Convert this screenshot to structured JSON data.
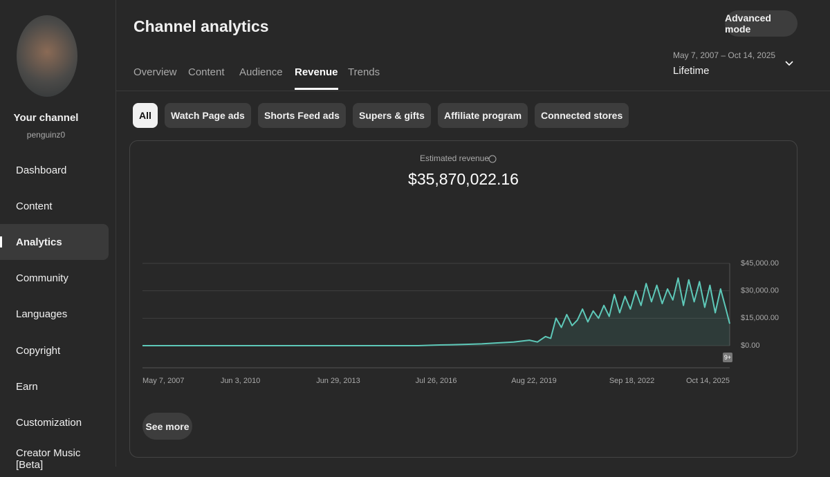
{
  "sidebar": {
    "channel_label": "Your channel",
    "handle": "penguinz0",
    "nav": [
      "Dashboard",
      "Content",
      "Analytics",
      "Community",
      "Languages",
      "Copyright",
      "Earn",
      "Customization",
      "Creator Music [Beta]"
    ],
    "selected_nav": "Analytics"
  },
  "header": {
    "title": "Channel analytics",
    "advanced_button": "Advanced mode",
    "tabs": [
      "Overview",
      "Content",
      "Audience",
      "Revenue",
      "Trends"
    ],
    "selected_tab": "Revenue",
    "date_range": "May 7, 2007 – Oct 14, 2025",
    "period": "Lifetime"
  },
  "chips": [
    "All",
    "Watch Page ads",
    "Shorts Feed ads",
    "Supers & gifts",
    "Affiliate program",
    "Connected stores"
  ],
  "selected_chip": "All",
  "see_more": "See more",
  "badge": "9+",
  "chart_data": {
    "type": "line",
    "title": "Estimated revenue",
    "subtitle": "$35,870,022.16",
    "x": [
      "2007-05-07",
      "2010-01-01",
      "2013-01-01",
      "2016-01-01",
      "2016-07-01",
      "2017-01-01",
      "2017-07-01",
      "2018-01-01",
      "2018-07-01",
      "2019-01-01",
      "2019-07-01",
      "2019-10-01",
      "2020-01-01",
      "2020-03-01",
      "2020-05-01",
      "2020-07-01",
      "2020-09-01",
      "2020-11-01",
      "2021-01-01",
      "2021-03-01",
      "2021-05-01",
      "2021-07-01",
      "2021-09-01",
      "2021-11-01",
      "2022-01-01",
      "2022-03-01",
      "2022-05-01",
      "2022-07-01",
      "2022-09-01",
      "2022-11-01",
      "2023-01-01",
      "2023-03-01",
      "2023-05-01",
      "2023-07-01",
      "2023-09-01",
      "2023-11-01",
      "2024-01-01",
      "2024-03-01",
      "2024-05-01",
      "2024-07-01",
      "2024-09-01",
      "2024-11-01",
      "2025-01-01",
      "2025-03-01",
      "2025-05-01",
      "2025-07-01",
      "2025-09-01",
      "2025-10-14"
    ],
    "series": [
      {
        "name": "Estimated revenue",
        "color": "#5ec9b9",
        "values": [
          0,
          0,
          0,
          0,
          300,
          500,
          700,
          1000,
          1500,
          2000,
          3000,
          2000,
          5000,
          4000,
          15000,
          10000,
          17000,
          11000,
          14000,
          20000,
          13000,
          19000,
          15000,
          22000,
          16000,
          28000,
          18000,
          27000,
          20000,
          30000,
          22000,
          34000,
          24000,
          33000,
          23000,
          31000,
          25000,
          37000,
          22000,
          36000,
          24000,
          35000,
          21000,
          33000,
          18000,
          31000,
          20000,
          12000
        ]
      }
    ],
    "xlim": [
      "2007-05-07",
      "2025-10-14"
    ],
    "xticks": [
      {
        "value": "2007-05-07",
        "label": "May 7, 2007"
      },
      {
        "value": "2010-06-03",
        "label": "Jun 3, 2010"
      },
      {
        "value": "2013-06-29",
        "label": "Jun 29, 2013"
      },
      {
        "value": "2016-07-26",
        "label": "Jul 26, 2016"
      },
      {
        "value": "2019-08-22",
        "label": "Aug 22, 2019"
      },
      {
        "value": "2022-09-18",
        "label": "Sep 18, 2022"
      },
      {
        "value": "2025-10-14",
        "label": "Oct 14, 2025"
      }
    ],
    "ylim": [
      0,
      45000
    ],
    "yticks": [
      {
        "value": 0,
        "label": "$0.00"
      },
      {
        "value": 15000,
        "label": "$15,000.00"
      },
      {
        "value": 30000,
        "label": "$30,000.00"
      },
      {
        "value": 45000,
        "label": "$45,000.00"
      }
    ],
    "grid": true
  }
}
